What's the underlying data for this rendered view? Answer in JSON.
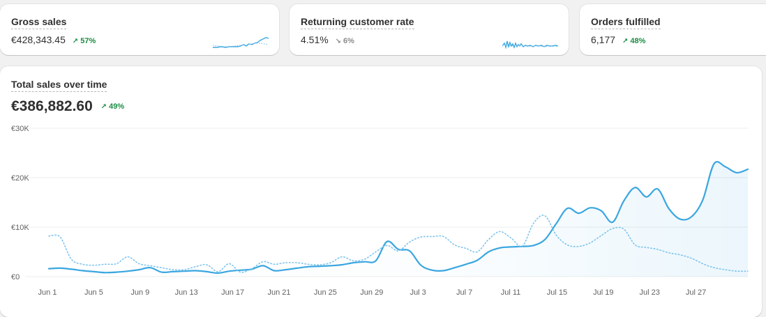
{
  "kpis": [
    {
      "title": "Gross sales",
      "value": "€428,343.45",
      "change": "57%",
      "direction": "up"
    },
    {
      "title": "Returning customer rate",
      "value": "4.51%",
      "change": "6%",
      "direction": "down"
    },
    {
      "title": "Orders fulfilled",
      "value": "6,177",
      "change": "48%",
      "direction": "up"
    }
  ],
  "main": {
    "title": "Total sales over time",
    "value": "€386,882.60",
    "change": "49%",
    "direction": "up"
  },
  "icons": {
    "up": "arrow-up-right-icon",
    "down": "arrow-down-right-icon"
  },
  "colors": {
    "current": "#3aa6e0",
    "previous": "#7ec4ec",
    "up": "#1a8d43",
    "grid": "#ececec"
  },
  "chart_data": {
    "type": "line",
    "ylim": [
      0,
      30000
    ],
    "y_ticks": [
      "€0",
      "€10K",
      "€20K",
      "€30K"
    ],
    "x_tick_labels": [
      "Jun 1",
      "Jun 5",
      "Jun 9",
      "Jun 13",
      "Jun 17",
      "Jun 21",
      "Jun 25",
      "Jun 29",
      "Jul 3",
      "Jul 7",
      "Jul 11",
      "Jul 15",
      "Jul 19",
      "Jul 23",
      "Jul 27"
    ],
    "series": [
      {
        "style": "solid",
        "values": [
          1600,
          1700,
          1500,
          1200,
          1000,
          800,
          900,
          1100,
          1400,
          1800,
          900,
          1000,
          1100,
          1200,
          1000,
          700,
          1100,
          1300,
          1500,
          2200,
          1200,
          1400,
          1700,
          2000,
          2100,
          2200,
          2400,
          2800,
          3000,
          3200,
          7100,
          5500,
          5200,
          2300,
          1300,
          1200,
          1800,
          2500,
          3300,
          5000,
          5800,
          6000,
          6100,
          6300,
          7500,
          10700,
          13800,
          12800,
          13900,
          13300,
          11000,
          15300,
          18000,
          16100,
          17700,
          13700,
          11600,
          12100,
          15500,
          22800,
          22200,
          21000,
          21700
        ]
      },
      {
        "style": "dotted",
        "values": [
          8200,
          8000,
          3500,
          2500,
          2300,
          2500,
          2600,
          4000,
          2600,
          2200,
          1800,
          1400,
          1400,
          2000,
          2400,
          1000,
          2600,
          900,
          1600,
          3000,
          2500,
          2800,
          2800,
          2500,
          2400,
          2800,
          4000,
          3200,
          3500,
          5000,
          6300,
          5200,
          7000,
          8000,
          8100,
          8100,
          6400,
          5700,
          5000,
          7500,
          9100,
          7800,
          6200,
          10800,
          12300,
          8400,
          6400,
          6100,
          6800,
          8300,
          9700,
          9600,
          6400,
          5900,
          5500,
          4800,
          4400,
          3700,
          2600,
          1800,
          1400,
          1100,
          1100
        ]
      }
    ]
  }
}
